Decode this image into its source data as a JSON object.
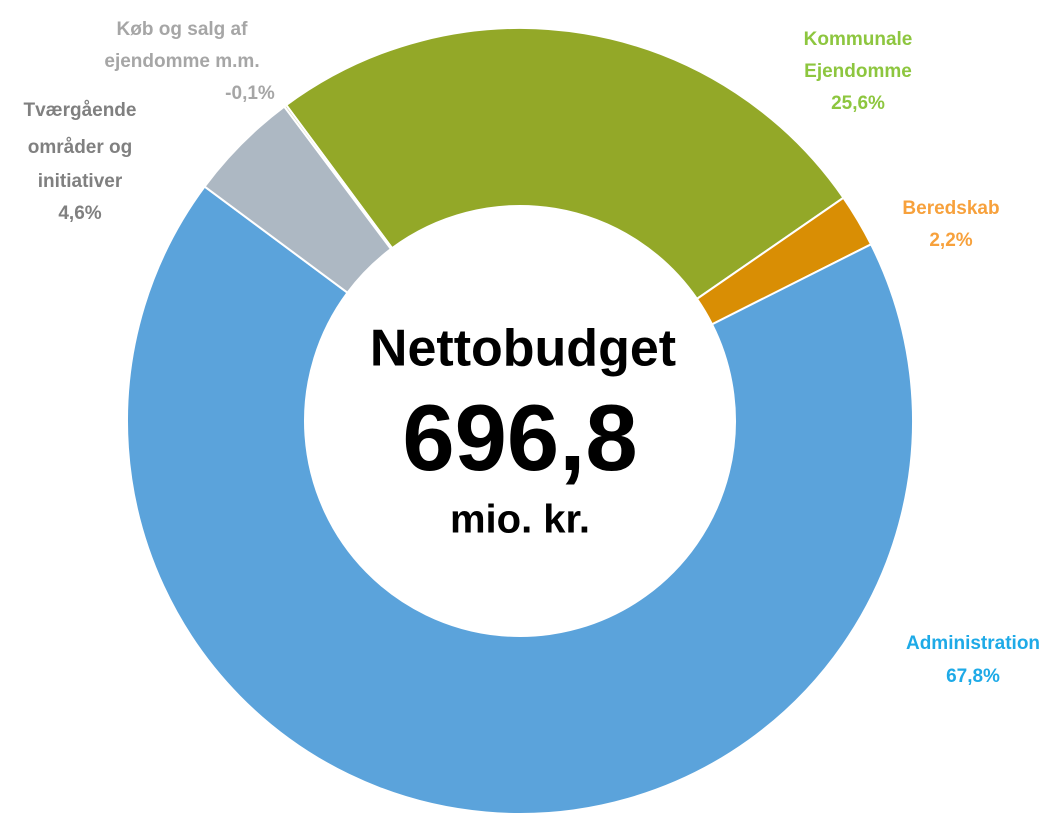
{
  "chart_data": {
    "type": "donut",
    "categories": [
      [
        "Kommunale",
        "Ejendomme"
      ],
      [
        "Beredskab"
      ],
      [
        "Administration"
      ],
      [
        "Tværgående",
        "områder og",
        "initiativer"
      ],
      [
        "Køb og salg af",
        "ejendomme m.m."
      ]
    ],
    "values": [
      25.6,
      2.2,
      67.8,
      4.6,
      -0.1
    ],
    "value_labels": [
      "25,6%",
      "2,2%",
      "67,8%",
      "4,6%",
      "-0,1%"
    ],
    "colors": [
      "#93a828",
      "#d98e04",
      "#5ba3db",
      "#adb8c3",
      "#c8c8a8"
    ],
    "label_colors": [
      "#8dc63f",
      "#f7a13c",
      "#1eaae7",
      "#808080",
      "#a6a6a6"
    ],
    "center_label": [
      "Nettobudget",
      "696,8",
      "mio. kr."
    ]
  }
}
